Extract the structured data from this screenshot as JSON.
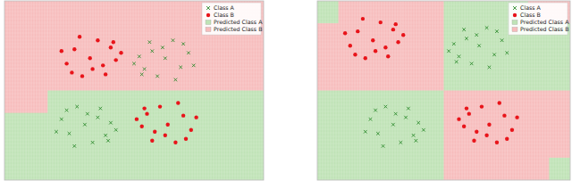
{
  "chart_data": [
    {
      "type": "scatter",
      "xlim": [
        0,
        100
      ],
      "ylim": [
        0,
        100
      ],
      "tick_labels": false,
      "legend": "upper right",
      "series": [
        {
          "name": "Class A",
          "color": "#2e8b2e",
          "marker": "x",
          "x": [
            62,
            68,
            57,
            71,
            54,
            59,
            65,
            52,
            73,
            56,
            66,
            61,
            69,
            53,
            50,
            31,
            25,
            36,
            22,
            39,
            34,
            28,
            41,
            20,
            37,
            27,
            32,
            24,
            40,
            43
          ],
          "values": [
            68,
            63,
            72,
            71,
            62,
            58,
            78,
            69,
            64,
            77,
            56,
            74,
            76,
            59,
            65,
            31,
            26,
            35,
            34,
            25,
            21,
            41,
            32,
            27,
            40,
            19,
            37,
            39,
            22,
            28
          ]
        },
        {
          "name": "Class B",
          "color": "#e8141a",
          "marker": "circle",
          "x": [
            33,
            27,
            38,
            24,
            41,
            36,
            30,
            43,
            22,
            39,
            29,
            34,
            26,
            42,
            45,
            63,
            69,
            58,
            72,
            55,
            60,
            66,
            53,
            74,
            57,
            67,
            62,
            70,
            54,
            51
          ],
          "values": [
            68,
            73,
            64,
            65,
            74,
            78,
            58,
            67,
            72,
            59,
            80,
            62,
            60,
            77,
            71,
            31,
            36,
            27,
            28,
            37,
            41,
            21,
            30,
            35,
            22,
            43,
            25,
            23,
            40,
            34
          ]
        }
      ],
      "regions": {
        "names": [
          "Predicted Class A",
          "Predicted Class B"
        ],
        "colors": [
          "#bfe3b6",
          "#f7bcbc"
        ],
        "cells": [
          [
            1,
            1,
            1,
            1,
            1,
            1,
            1,
            1,
            1,
            1,
            1,
            1
          ],
          [
            1,
            1,
            1,
            1,
            1,
            1,
            1,
            1,
            1,
            1,
            1,
            1
          ],
          [
            1,
            1,
            1,
            1,
            1,
            1,
            1,
            1,
            1,
            1,
            1,
            1
          ],
          [
            1,
            1,
            1,
            1,
            1,
            1,
            1,
            1,
            1,
            1,
            1,
            1
          ],
          [
            1,
            1,
            0,
            0,
            0,
            0,
            0,
            0,
            0,
            0,
            0,
            0
          ],
          [
            0,
            0,
            0,
            0,
            0,
            0,
            0,
            0,
            0,
            0,
            0,
            0
          ],
          [
            0,
            0,
            0,
            0,
            0,
            0,
            0,
            0,
            0,
            0,
            0,
            0
          ],
          [
            0,
            0,
            0,
            0,
            0,
            0,
            0,
            0,
            0,
            0,
            0,
            0
          ]
        ]
      }
    },
    {
      "type": "scatter",
      "xlim": [
        0,
        100
      ],
      "ylim": [
        0,
        100
      ],
      "tick_labels": false,
      "legend": "upper right",
      "series": [
        {
          "name": "Class A",
          "color": "#2e8b2e",
          "marker": "x",
          "x": [
            64,
            70,
            59,
            73,
            56,
            61,
            67,
            54,
            75,
            58,
            68,
            63,
            71,
            55,
            52,
            30,
            24,
            35,
            21,
            38,
            33,
            27,
            40,
            19,
            36,
            26,
            31,
            23,
            39,
            42
          ],
          "values": [
            75,
            70,
            79,
            78,
            69,
            65,
            85,
            76,
            71,
            84,
            63,
            81,
            83,
            66,
            72,
            31,
            26,
            35,
            34,
            25,
            21,
            41,
            32,
            27,
            40,
            19,
            37,
            39,
            22,
            28
          ]
        },
        {
          "name": "Class B",
          "color": "#e8141a",
          "marker": "circle",
          "x": [
            22,
            16,
            27,
            13,
            30,
            25,
            19,
            32,
            11,
            28,
            18,
            23,
            15,
            31,
            34,
            68,
            74,
            63,
            77,
            60,
            65,
            71,
            58,
            79,
            62,
            72,
            67,
            75,
            59,
            56
          ],
          "values": [
            78,
            83,
            74,
            75,
            84,
            88,
            68,
            77,
            82,
            69,
            90,
            72,
            70,
            87,
            81,
            31,
            36,
            27,
            28,
            37,
            41,
            21,
            30,
            35,
            22,
            43,
            25,
            23,
            40,
            34
          ]
        }
      ],
      "regions": {
        "names": [
          "Predicted Class A",
          "Predicted Class B"
        ],
        "colors": [
          "#bfe3b6",
          "#f7bcbc"
        ],
        "cells": [
          [
            0,
            1,
            1,
            1,
            1,
            1,
            0,
            0,
            0,
            0,
            1,
            1
          ],
          [
            1,
            1,
            1,
            1,
            1,
            1,
            0,
            0,
            0,
            0,
            0,
            0
          ],
          [
            1,
            1,
            1,
            1,
            1,
            1,
            0,
            0,
            0,
            0,
            0,
            0
          ],
          [
            1,
            1,
            1,
            1,
            1,
            1,
            0,
            0,
            0,
            0,
            0,
            0
          ],
          [
            0,
            0,
            0,
            0,
            0,
            0,
            1,
            1,
            1,
            1,
            1,
            1
          ],
          [
            0,
            0,
            0,
            0,
            0,
            0,
            1,
            1,
            1,
            1,
            1,
            1
          ],
          [
            0,
            0,
            0,
            0,
            0,
            0,
            1,
            1,
            1,
            1,
            1,
            1
          ],
          [
            0,
            0,
            0,
            0,
            0,
            0,
            1,
            1,
            1,
            1,
            1,
            0
          ]
        ]
      }
    }
  ]
}
